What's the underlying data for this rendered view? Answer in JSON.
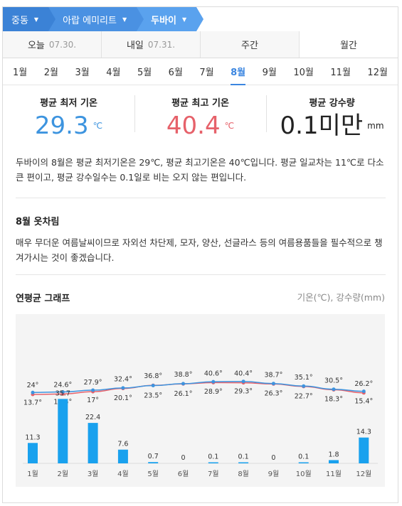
{
  "breadcrumb": [
    {
      "label": "중동"
    },
    {
      "label": "아랍 에미리트"
    },
    {
      "label": "두바이"
    }
  ],
  "top_tabs": [
    {
      "label": "오늘",
      "date": "07.30."
    },
    {
      "label": "내일",
      "date": "07.31."
    },
    {
      "label": "주간",
      "date": ""
    },
    {
      "label": "월간",
      "date": "",
      "active": true
    }
  ],
  "months": [
    "1월",
    "2월",
    "3월",
    "4월",
    "5월",
    "6월",
    "7월",
    "8월",
    "9월",
    "10월",
    "11월",
    "12월"
  ],
  "active_month_index": 7,
  "stats": {
    "low": {
      "label": "평균 최저 기온",
      "value": "29.3",
      "unit": "℃"
    },
    "high": {
      "label": "평균 최고 기온",
      "value": "40.4",
      "unit": "℃"
    },
    "rain": {
      "label": "평균 강수량",
      "value": "0.1미만",
      "unit": "mm"
    }
  },
  "description": "두바이의 8월은 평균 최저기온은 29℃, 평균 최고기온은 40℃입니다. 평균 일교차는 11℃로 다소 큰 편이고, 평균 강수일수는 0.1일로 비는 오지 않는 편입니다.",
  "outfit": {
    "title": "8월 옷차림",
    "text": "매우 무더운 여름날씨이므로 자외선 차단제, 모자, 양산, 선글라스 등의 여름용품들을 필수적으로 챙겨가시는 것이 좋겠습니다."
  },
  "graph": {
    "title": "연평균 그래프",
    "units": "기온(℃), 강수량(mm)"
  },
  "colors": {
    "accent": "#3b86e0",
    "high_line": "#e6616a",
    "low_line": "#3d94df",
    "rain_bar": "#19a1ee"
  },
  "chart_data": {
    "type": "line",
    "categories": [
      "1월",
      "2월",
      "3월",
      "4월",
      "5월",
      "6월",
      "7월",
      "8월",
      "9월",
      "10월",
      "11월",
      "12월"
    ],
    "series": [
      {
        "values": [
          24,
          24.6,
          27.9,
          32.4,
          36.8,
          38.8,
          40.6,
          40.4,
          38.7,
          35.1,
          30.5,
          26.2
        ],
        "labels": [
          "24°",
          "24.6°",
          "27.9°",
          "32.4°",
          "36.8°",
          "38.8°",
          "40.6°",
          "40.4°",
          "38.7°",
          "35.1°",
          "30.5°",
          "26.2°"
        ]
      },
      {
        "values": [
          13.7,
          14.5,
          17,
          20.1,
          23.5,
          26.1,
          28.9,
          29.3,
          26.3,
          22.7,
          18.3,
          15.4
        ],
        "labels": [
          "13.7°",
          "14.5°",
          "17°",
          "20.1°",
          "23.5°",
          "26.1°",
          "28.9°",
          "29.3°",
          "26.3°",
          "22.7°",
          "18.3°",
          "15.4°"
        ]
      },
      {
        "type": "bar",
        "values": [
          11.3,
          35.7,
          22.4,
          7.6,
          0.7,
          0,
          0.1,
          0.1,
          0,
          0.1,
          1.8,
          14.3
        ],
        "labels": [
          "11.3",
          "35.7",
          "22.4",
          "7.6",
          "0.7",
          "0",
          "0.1",
          "0.1",
          "0",
          "0.1",
          "1.8",
          "14.3"
        ]
      }
    ]
  }
}
